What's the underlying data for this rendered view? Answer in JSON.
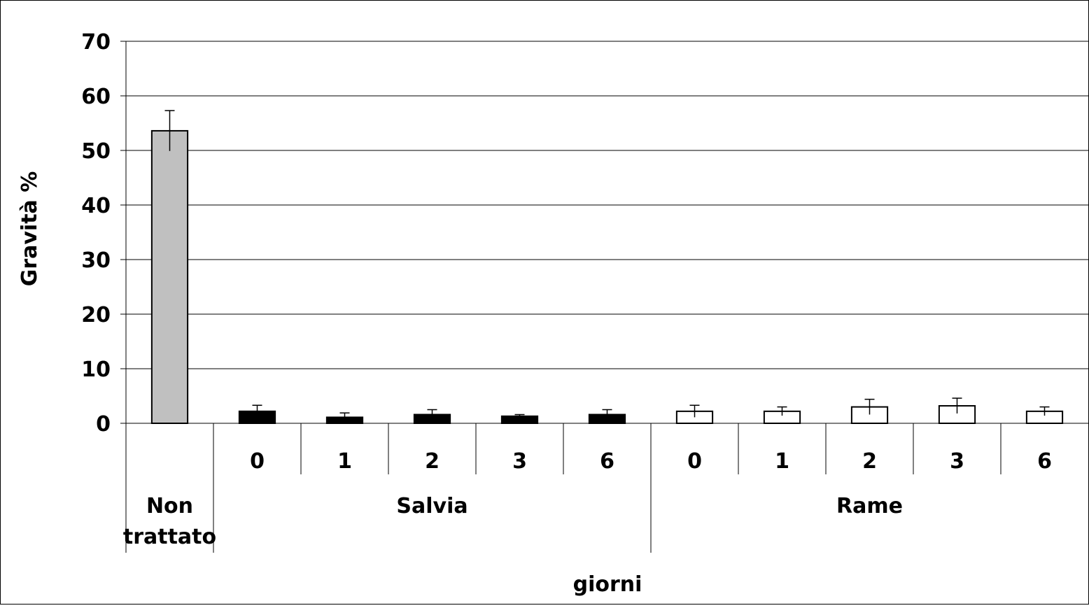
{
  "chart_data": {
    "type": "bar",
    "title": "",
    "ylabel": "Gravità %",
    "xlabel": "giorni",
    "ylim": [
      0,
      70
    ],
    "yticks": [
      0,
      10,
      20,
      30,
      40,
      50,
      60,
      70
    ],
    "grid": true,
    "legend": "none",
    "groups": [
      {
        "label": "Non trattato",
        "label_lines": [
          "Non",
          "trattato"
        ],
        "color": "#c0c0c0",
        "bars": [
          {
            "day": "",
            "value": 53.6,
            "err": 3.7
          }
        ]
      },
      {
        "label": "Salvia",
        "color": "#000000",
        "bars": [
          {
            "day": "0",
            "value": 2.2,
            "err": 1.1
          },
          {
            "day": "1",
            "value": 1.1,
            "err": 0.8
          },
          {
            "day": "2",
            "value": 1.6,
            "err": 0.9
          },
          {
            "day": "3",
            "value": 1.3,
            "err": 0.3
          },
          {
            "day": "6",
            "value": 1.6,
            "err": 0.9
          }
        ]
      },
      {
        "label": "Rame",
        "color": "#ffffff",
        "bars": [
          {
            "day": "0",
            "value": 2.2,
            "err": 1.1
          },
          {
            "day": "1",
            "value": 2.2,
            "err": 0.8
          },
          {
            "day": "2",
            "value": 3.0,
            "err": 1.4
          },
          {
            "day": "3",
            "value": 3.2,
            "err": 1.4
          },
          {
            "day": "6",
            "value": 2.2,
            "err": 0.8
          }
        ]
      }
    ]
  }
}
